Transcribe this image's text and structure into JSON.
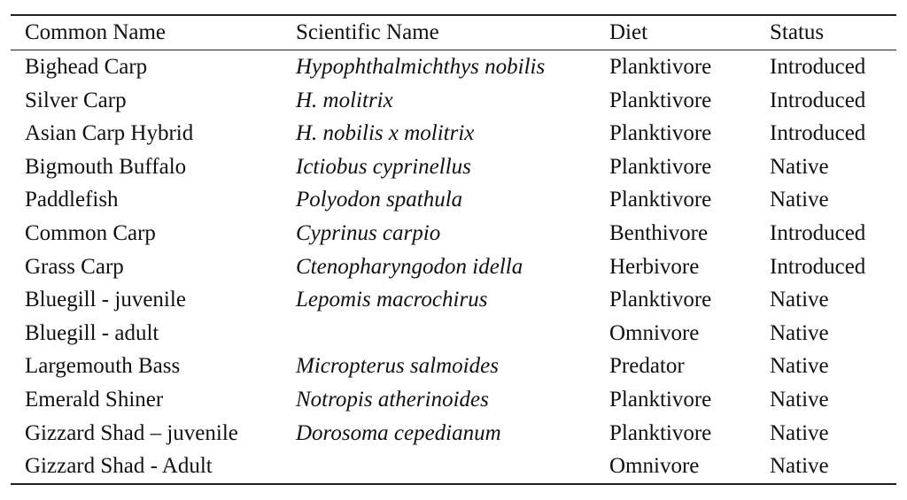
{
  "table": {
    "headers": [
      "Common Name",
      "Scientific Name",
      "Diet",
      "Status"
    ],
    "rows": [
      [
        "Bighead Carp",
        "Hypophthalmichthys nobilis",
        "Planktivore",
        "Introduced"
      ],
      [
        "Silver Carp",
        "H. molitrix",
        "Planktivore",
        "Introduced"
      ],
      [
        "Asian Carp Hybrid",
        "H. nobilis x molitrix",
        "Planktivore",
        "Introduced"
      ],
      [
        "Bigmouth Buffalo",
        "Ictiobus cyprinellus",
        "Planktivore",
        "Native"
      ],
      [
        "Paddlefish",
        "Polyodon spathula",
        "Planktivore",
        "Native"
      ],
      [
        "Common Carp",
        "Cyprinus carpio",
        "Benthivore",
        "Introduced"
      ],
      [
        "Grass Carp",
        "Ctenopharyngodon idella",
        "Herbivore",
        "Introduced"
      ],
      [
        "Bluegill - juvenile",
        "Lepomis macrochirus",
        "Planktivore",
        "Native"
      ],
      [
        "Bluegill - adult",
        "",
        "Omnivore",
        "Native"
      ],
      [
        "Largemouth Bass",
        "Micropterus salmoides",
        "Predator",
        "Native"
      ],
      [
        "Emerald Shiner",
        "Notropis atherinoides",
        "Planktivore",
        "Native"
      ],
      [
        "Gizzard Shad – juvenile",
        "Dorosoma cepedianum",
        "Planktivore",
        "Native"
      ],
      [
        "Gizzard Shad - Adult",
        "",
        "Omnivore",
        "Native"
      ]
    ]
  }
}
